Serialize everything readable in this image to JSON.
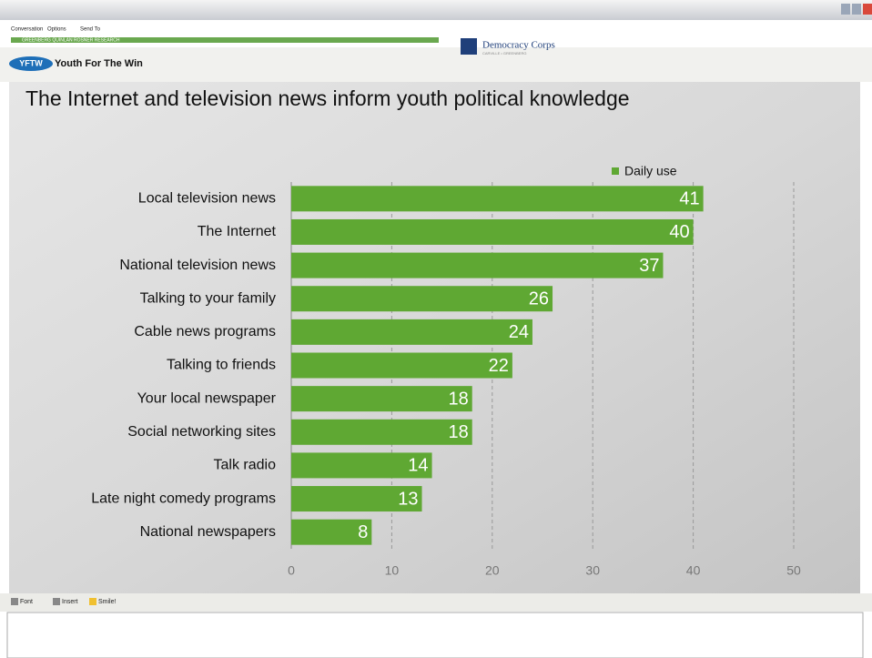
{
  "window": {
    "menu": [
      "Conversation",
      "Options",
      "Send To"
    ],
    "status": "GREENBERG QUINLAN ROSNER RESEARCH"
  },
  "header": {
    "badge": "YFTW",
    "title": "Youth For The Win",
    "brand": "Democracy Corps",
    "brand_sub": "CARVILLE • GREENBERG"
  },
  "chart_data": {
    "type": "bar",
    "orientation": "horizontal",
    "title": "The Internet and television news inform youth political knowledge",
    "categories": [
      "Local television news",
      "The Internet",
      "National television news",
      "Talking to your family",
      "Cable news programs",
      "Talking to friends",
      "Your local newspaper",
      "Social networking sites",
      "Talk radio",
      "Late night comedy programs",
      "National newspapers"
    ],
    "series": [
      {
        "name": "Daily use",
        "color": "#5fa833",
        "values": [
          41,
          40,
          37,
          26,
          24,
          22,
          18,
          18,
          14,
          13,
          8
        ]
      }
    ],
    "xlim": [
      0,
      50
    ],
    "xticks": [
      0,
      10,
      20,
      30,
      40,
      50
    ],
    "grid": true,
    "legend": "top-right"
  },
  "toolbar": [
    "Font",
    "Insert",
    "Smile!"
  ]
}
